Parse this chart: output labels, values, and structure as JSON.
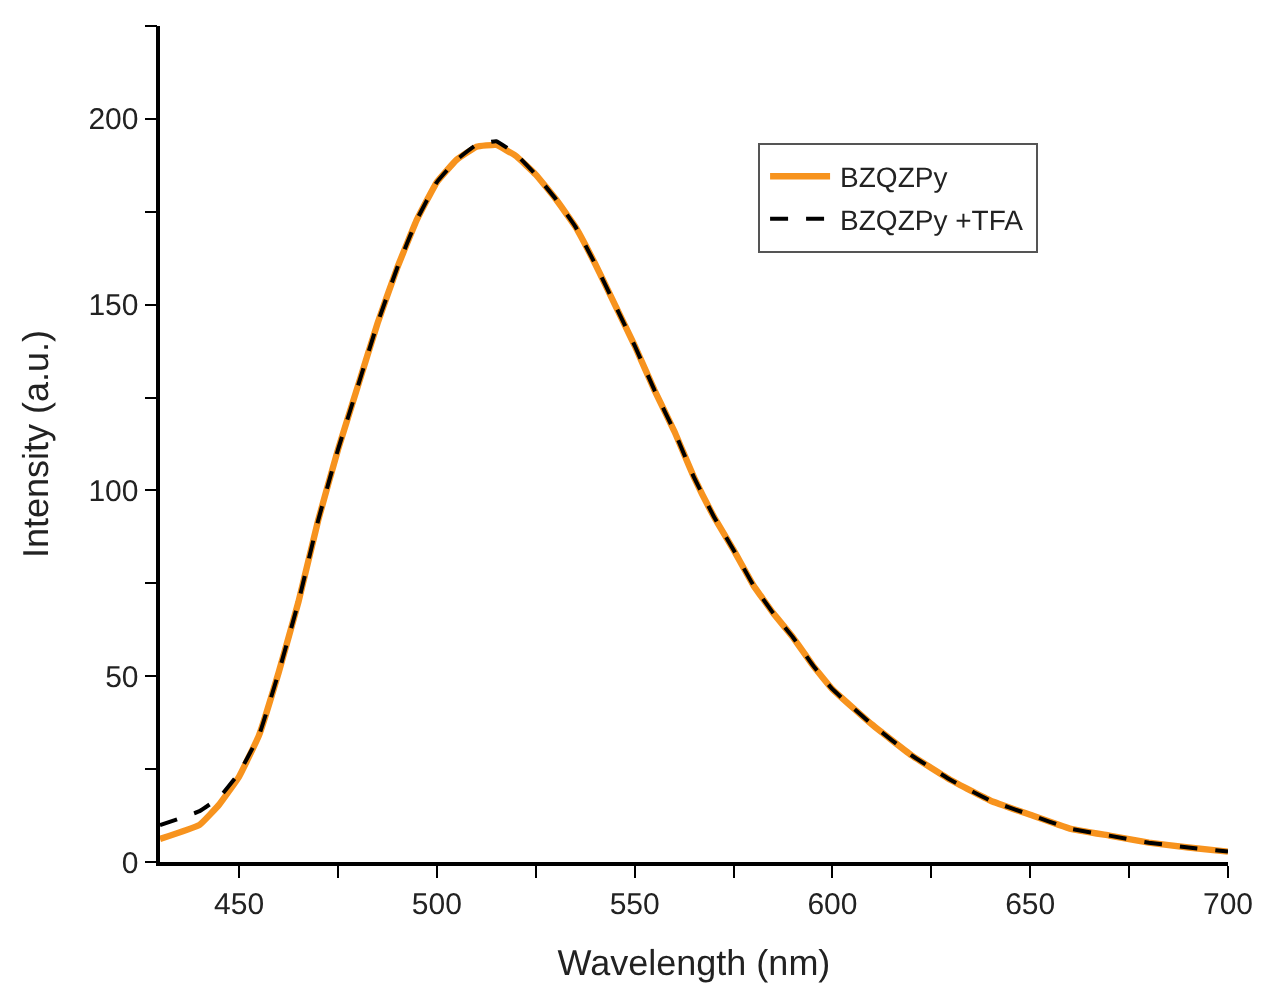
{
  "chart_data": {
    "type": "line",
    "xlabel": "Wavelength (nm)",
    "ylabel": "Intensity (a.u.)",
    "x": [
      430,
      440,
      445,
      450,
      455,
      460,
      465,
      470,
      475,
      480,
      485,
      490,
      495,
      500,
      505,
      510,
      515,
      520,
      525,
      530,
      535,
      540,
      545,
      550,
      555,
      560,
      565,
      570,
      575,
      580,
      585,
      590,
      595,
      600,
      610,
      620,
      630,
      640,
      650,
      660,
      670,
      680,
      690,
      700
    ],
    "series": [
      {
        "name": "BZQZPy",
        "color": "#f7931e",
        "line_style": "solid",
        "values": [
          6.2,
          10,
          15.5,
          23,
          34,
          51,
          70,
          92,
          111,
          128,
          145,
          160,
          173,
          183,
          189,
          192.5,
          193,
          190,
          185,
          178.5,
          171,
          161,
          150,
          139,
          127,
          116,
          103.5,
          93,
          84,
          74.5,
          67,
          60.5,
          53,
          46.5,
          37,
          28.7,
          22,
          16.5,
          12.7,
          9,
          7.1,
          5.2,
          3.9,
          2.8
        ]
      },
      {
        "name": "BZQZPy +TFA",
        "color": "#000000",
        "line_style": "dashed",
        "values": [
          9.9,
          13.7,
          17.4,
          24,
          34,
          51,
          70,
          92,
          111,
          128,
          145,
          160,
          173,
          183,
          189,
          193,
          194,
          190.5,
          185,
          178.5,
          171,
          161,
          150,
          139,
          127,
          116,
          103.5,
          93,
          84,
          74.5,
          67,
          60.5,
          53,
          46.5,
          37,
          28.7,
          22,
          16.5,
          12.7,
          9,
          7.1,
          5.2,
          3.9,
          2.8
        ]
      }
    ],
    "xlim": [
      430,
      700
    ],
    "ylim": [
      0,
      225
    ],
    "xticks": [
      450,
      {
        "value": 475,
        "label": null
      },
      500,
      {
        "value": 525,
        "label": null
      },
      550,
      {
        "value": 575,
        "label": null
      },
      600,
      {
        "value": 625,
        "label": null
      },
      650,
      {
        "value": 675,
        "label": null
      },
      700
    ],
    "yticks": [
      0,
      {
        "value": 25,
        "label": null
      },
      50,
      {
        "value": 75,
        "label": null
      },
      100,
      {
        "value": 125,
        "label": null
      },
      150,
      {
        "value": 175,
        "label": null
      },
      200,
      {
        "value": 225,
        "label": null
      }
    ],
    "legend": "top right",
    "marker": "none"
  }
}
